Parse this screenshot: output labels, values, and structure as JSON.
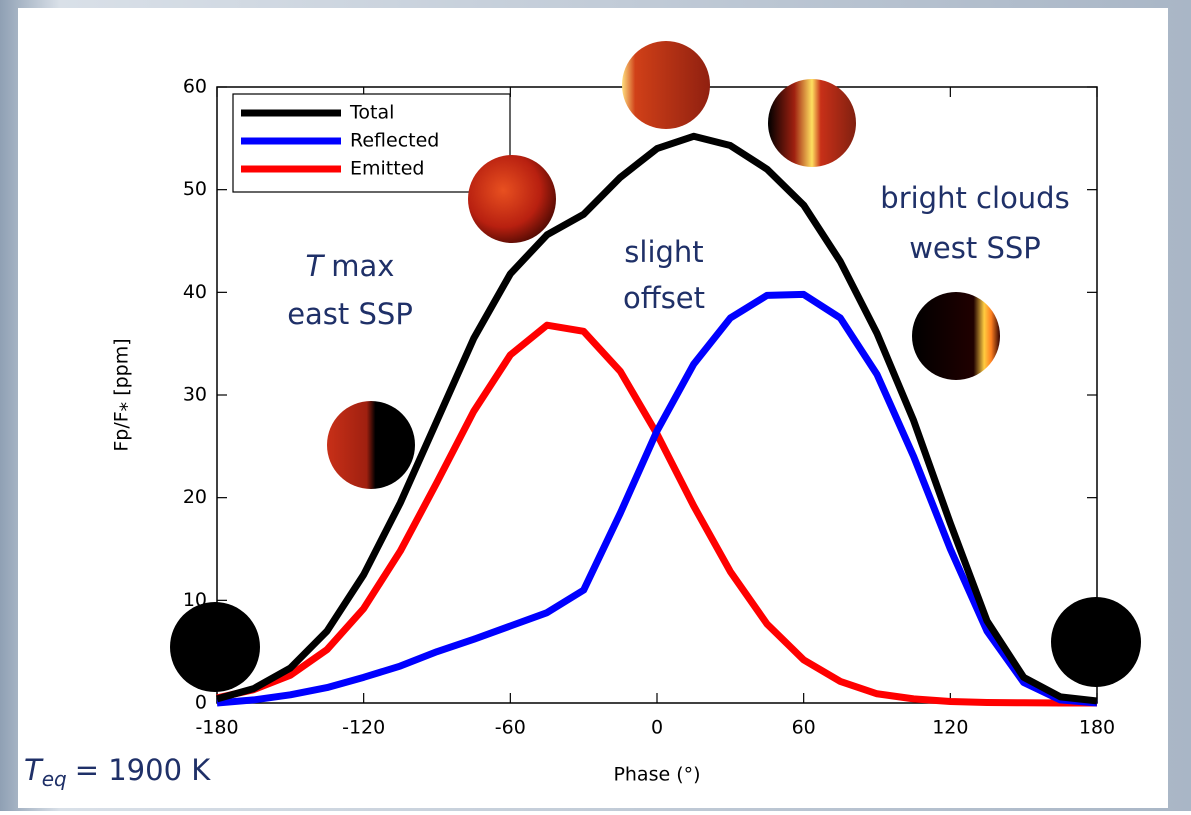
{
  "chart_data": {
    "type": "line",
    "xlabel": "Phase (°)",
    "ylabel": "Fp/F⁎ [ppm]",
    "x": [
      -180,
      -165,
      -150,
      -135,
      -120,
      -105,
      -90,
      -75,
      -60,
      -45,
      -30,
      -15,
      0,
      15,
      30,
      45,
      60,
      75,
      90,
      105,
      120,
      135,
      150,
      165,
      180
    ],
    "series": [
      {
        "name": "Total",
        "color": "#000000",
        "values": [
          0.4,
          1.4,
          3.4,
          7,
          12.5,
          19.5,
          27.5,
          35.5,
          41.8,
          45.6,
          47.6,
          51.2,
          54,
          55.2,
          54.3,
          52,
          48.5,
          43,
          36,
          27.5,
          17.5,
          8,
          2.5,
          0.6,
          0.2
        ]
      },
      {
        "name": "Reflected",
        "color": "#0000ff",
        "values": [
          0,
          0.3,
          0.8,
          1.5,
          2.5,
          3.6,
          5,
          6.2,
          7.5,
          8.8,
          11,
          18.5,
          26.5,
          33,
          37.5,
          39.7,
          39.8,
          37.5,
          32,
          24,
          15,
          7,
          2,
          0.3,
          0
        ]
      },
      {
        "name": "Emitted",
        "color": "#ff0000",
        "values": [
          0.5,
          1.3,
          2.7,
          5.2,
          9.2,
          14.8,
          21.5,
          28.4,
          33.9,
          36.8,
          36.2,
          32.3,
          26.2,
          19.2,
          12.8,
          7.7,
          4.2,
          2.1,
          0.9,
          0.4,
          0.15,
          0.05,
          0.02,
          0,
          0
        ]
      }
    ],
    "xlim": [
      -180,
      180
    ],
    "ylim": [
      0,
      60
    ],
    "xticks": [
      -180,
      -120,
      -60,
      0,
      60,
      120,
      180
    ],
    "yticks": [
      0,
      10,
      20,
      30,
      40,
      50,
      60
    ],
    "legend": "upper-left",
    "annotations": {
      "t_symbol": "T",
      "t_max": "max",
      "east": "east SSP",
      "slight": "slight",
      "offset": "offset",
      "bright": "bright clouds",
      "west": "west SSP"
    },
    "teq": {
      "symbol": "T",
      "subscript": "eq",
      "text": "= 1900 K"
    }
  }
}
